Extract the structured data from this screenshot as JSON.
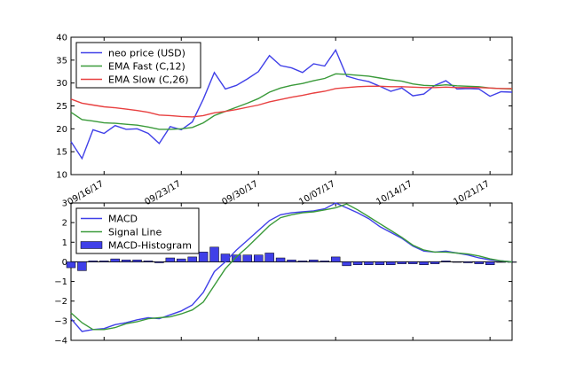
{
  "chart_data": [
    {
      "type": "line",
      "title": "",
      "xlabel": "",
      "ylabel": "",
      "x_range": [
        "2017-09-13",
        "2017-10-23"
      ],
      "ylim": [
        10,
        40
      ],
      "y_ticks": [
        10,
        15,
        20,
        25,
        30,
        35,
        40
      ],
      "x_ticks": [
        {
          "date": "2017-09-16",
          "label": "09/16/17"
        },
        {
          "date": "2017-09-23",
          "label": "09/23/17"
        },
        {
          "date": "2017-09-30",
          "label": "09/30/17"
        },
        {
          "date": "2017-10-07",
          "label": "10/07/17"
        },
        {
          "date": "2017-10-14",
          "label": "10/14/17"
        },
        {
          "date": "2017-10-21",
          "label": "10/21/17"
        }
      ],
      "legend_position": "upper-left",
      "x": [
        "2017-09-13",
        "2017-09-14",
        "2017-09-15",
        "2017-09-16",
        "2017-09-17",
        "2017-09-18",
        "2017-09-19",
        "2017-09-20",
        "2017-09-21",
        "2017-09-22",
        "2017-09-23",
        "2017-09-24",
        "2017-09-25",
        "2017-09-26",
        "2017-09-27",
        "2017-09-28",
        "2017-09-29",
        "2017-09-30",
        "2017-10-01",
        "2017-10-02",
        "2017-10-03",
        "2017-10-04",
        "2017-10-05",
        "2017-10-06",
        "2017-10-07",
        "2017-10-08",
        "2017-10-09",
        "2017-10-10",
        "2017-10-11",
        "2017-10-12",
        "2017-10-13",
        "2017-10-14",
        "2017-10-15",
        "2017-10-16",
        "2017-10-17",
        "2017-10-18",
        "2017-10-19",
        "2017-10-20",
        "2017-10-21",
        "2017-10-22",
        "2017-10-23"
      ],
      "series": [
        {
          "name": "neo price (USD)",
          "color": "#4040e8",
          "values": [
            17.2,
            13.5,
            19.8,
            19.0,
            20.7,
            19.9,
            20.0,
            19.0,
            16.8,
            20.5,
            19.8,
            21.5,
            26.5,
            32.3,
            28.7,
            29.5,
            30.9,
            32.5,
            36.0,
            33.8,
            33.3,
            32.3,
            34.2,
            33.7,
            37.2,
            31.5,
            30.8,
            30.3,
            29.3,
            28.2,
            28.9,
            27.2,
            27.6,
            29.5,
            30.5,
            28.7,
            28.8,
            28.7,
            27.1,
            28.1,
            28.0
          ]
        },
        {
          "name": "EMA Fast (C,12)",
          "color": "#3a9a3a",
          "values": [
            23.6,
            22.0,
            21.7,
            21.3,
            21.2,
            21.0,
            20.8,
            20.4,
            19.9,
            19.9,
            20.0,
            20.3,
            21.3,
            22.9,
            23.8,
            24.7,
            25.6,
            26.6,
            28.0,
            28.9,
            29.5,
            29.9,
            30.5,
            31.0,
            32.0,
            31.9,
            31.7,
            31.5,
            31.1,
            30.7,
            30.4,
            29.8,
            29.5,
            29.4,
            29.6,
            29.4,
            29.3,
            29.2,
            28.9,
            28.8,
            28.7
          ]
        },
        {
          "name": "EMA Slow (C,26)",
          "color": "#e84040",
          "values": [
            26.5,
            25.6,
            25.2,
            24.8,
            24.6,
            24.3,
            24.0,
            23.6,
            23.0,
            22.9,
            22.7,
            22.6,
            22.9,
            23.5,
            23.8,
            24.2,
            24.7,
            25.2,
            25.9,
            26.4,
            26.9,
            27.3,
            27.8,
            28.2,
            28.8,
            29.0,
            29.2,
            29.3,
            29.3,
            29.2,
            29.2,
            29.1,
            29.0,
            29.0,
            29.1,
            29.0,
            29.0,
            29.0,
            28.9,
            28.8,
            28.8
          ]
        }
      ]
    },
    {
      "type": "line",
      "title": "",
      "xlabel": "",
      "ylabel": "",
      "x_range": [
        "2017-09-13",
        "2017-10-23"
      ],
      "ylim": [
        -4,
        3
      ],
      "y_ticks": [
        -4,
        -3,
        -2,
        -1,
        0,
        1,
        2,
        3
      ],
      "legend_position": "upper-left",
      "x": [
        "2017-09-13",
        "2017-09-14",
        "2017-09-15",
        "2017-09-16",
        "2017-09-17",
        "2017-09-18",
        "2017-09-19",
        "2017-09-20",
        "2017-09-21",
        "2017-09-22",
        "2017-09-23",
        "2017-09-24",
        "2017-09-25",
        "2017-09-26",
        "2017-09-27",
        "2017-09-28",
        "2017-09-29",
        "2017-09-30",
        "2017-10-01",
        "2017-10-02",
        "2017-10-03",
        "2017-10-04",
        "2017-10-05",
        "2017-10-06",
        "2017-10-07",
        "2017-10-08",
        "2017-10-09",
        "2017-10-10",
        "2017-10-11",
        "2017-10-12",
        "2017-10-13",
        "2017-10-14",
        "2017-10-15",
        "2017-10-16",
        "2017-10-17",
        "2017-10-18",
        "2017-10-19",
        "2017-10-20",
        "2017-10-21",
        "2017-10-22",
        "2017-10-23"
      ],
      "series": [
        {
          "name": "MACD",
          "color": "#4040e8",
          "values": [
            -2.9,
            -3.55,
            -3.45,
            -3.4,
            -3.2,
            -3.1,
            -2.95,
            -2.85,
            -2.9,
            -2.7,
            -2.5,
            -2.2,
            -1.55,
            -0.5,
            0.0,
            0.6,
            1.1,
            1.6,
            2.1,
            2.4,
            2.5,
            2.55,
            2.6,
            2.7,
            3.0,
            2.75,
            2.5,
            2.2,
            1.8,
            1.5,
            1.2,
            0.8,
            0.55,
            0.5,
            0.55,
            0.45,
            0.35,
            0.2,
            0.1,
            0.05,
            0.0
          ]
        },
        {
          "name": "Signal Line",
          "color": "#3a9a3a",
          "values": [
            -2.6,
            -3.1,
            -3.45,
            -3.45,
            -3.35,
            -3.15,
            -3.05,
            -2.9,
            -2.85,
            -2.8,
            -2.65,
            -2.45,
            -2.05,
            -1.2,
            -0.35,
            0.25,
            0.75,
            1.3,
            1.85,
            2.25,
            2.4,
            2.5,
            2.55,
            2.65,
            2.75,
            2.95,
            2.65,
            2.3,
            1.95,
            1.6,
            1.25,
            0.85,
            0.6,
            0.5,
            0.5,
            0.45,
            0.4,
            0.3,
            0.15,
            0.05,
            0.0
          ]
        },
        {
          "name": "MACD-Histogram",
          "color": "#4040e8",
          "type": "bar",
          "values": [
            -0.3,
            -0.45,
            0.05,
            0.05,
            0.15,
            0.1,
            0.1,
            0.05,
            -0.05,
            0.2,
            0.15,
            0.25,
            0.5,
            0.75,
            0.4,
            0.35,
            0.35,
            0.35,
            0.45,
            0.2,
            0.1,
            0.05,
            0.1,
            0.05,
            0.25,
            -0.2,
            -0.15,
            -0.15,
            -0.15,
            -0.15,
            -0.1,
            -0.1,
            -0.15,
            -0.1,
            0.05,
            0.0,
            -0.05,
            -0.1,
            -0.15,
            0.0,
            0.0
          ]
        }
      ]
    }
  ]
}
